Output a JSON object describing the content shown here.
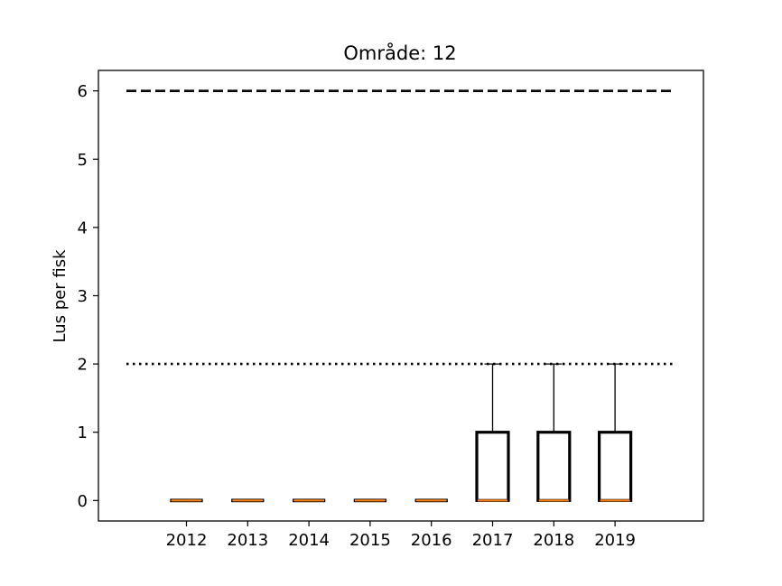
{
  "chart_data": {
    "type": "box",
    "title": "Område: 12",
    "xlabel": "",
    "ylabel": "Lus per fisk",
    "categories": [
      "2012",
      "2013",
      "2014",
      "2015",
      "2016",
      "2017",
      "2018",
      "2019"
    ],
    "yticks": [
      "0",
      "1",
      "2",
      "3",
      "4",
      "5",
      "6"
    ],
    "ylim": [
      -0.3,
      6.3
    ],
    "boxes": [
      {
        "year": "2012",
        "q1": 0,
        "median": 0,
        "q3": 0,
        "whisker_low": 0,
        "whisker_high": 0
      },
      {
        "year": "2013",
        "q1": 0,
        "median": 0,
        "q3": 0,
        "whisker_low": 0,
        "whisker_high": 0
      },
      {
        "year": "2014",
        "q1": 0,
        "median": 0,
        "q3": 0,
        "whisker_low": 0,
        "whisker_high": 0
      },
      {
        "year": "2015",
        "q1": 0,
        "median": 0,
        "q3": 0,
        "whisker_low": 0,
        "whisker_high": 0
      },
      {
        "year": "2016",
        "q1": 0,
        "median": 0,
        "q3": 0,
        "whisker_low": 0,
        "whisker_high": 0
      },
      {
        "year": "2017",
        "q1": 0,
        "median": 0,
        "q3": 1,
        "whisker_low": 0,
        "whisker_high": 2
      },
      {
        "year": "2018",
        "q1": 0,
        "median": 0,
        "q3": 1,
        "whisker_low": 0,
        "whisker_high": 2
      },
      {
        "year": "2019",
        "q1": 0,
        "median": 0,
        "q3": 1,
        "whisker_low": 0,
        "whisker_high": 2
      }
    ],
    "reference_lines": [
      {
        "y": 6,
        "style": "dashed",
        "color": "#000000"
      },
      {
        "y": 2,
        "style": "dotted",
        "color": "#000000"
      }
    ],
    "median_color": "#ff7f0e",
    "box_color": "#000000",
    "grid": false,
    "legend": "none"
  }
}
